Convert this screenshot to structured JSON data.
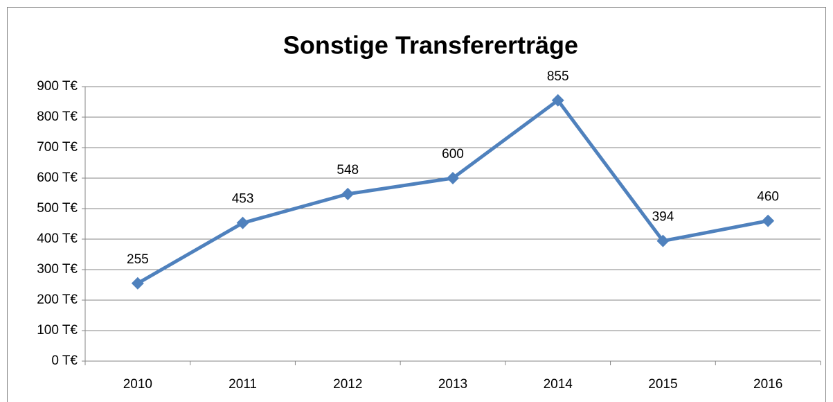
{
  "chart_data": {
    "type": "line",
    "title": "Sonstige Transfererträge",
    "categories": [
      "2010",
      "2011",
      "2012",
      "2013",
      "2014",
      "2015",
      "2016"
    ],
    "series": [
      {
        "name": "Sonstige Transfererträge",
        "color": "#4f81bd",
        "values": [
          255,
          453,
          548,
          600,
          855,
          394,
          460
        ]
      }
    ],
    "ylim": [
      0,
      900
    ],
    "yticks": [
      {
        "value": 0,
        "label": "0 T€"
      },
      {
        "value": 100,
        "label": "100 T€"
      },
      {
        "value": 200,
        "label": "200 T€"
      },
      {
        "value": 300,
        "label": "300 T€"
      },
      {
        "value": 400,
        "label": "400 T€"
      },
      {
        "value": 500,
        "label": "500 T€"
      },
      {
        "value": 600,
        "label": "600 T€"
      },
      {
        "value": 700,
        "label": "700 T€"
      },
      {
        "value": 800,
        "label": "800 T€"
      },
      {
        "value": 900,
        "label": "900 T€"
      }
    ],
    "grid": true
  }
}
